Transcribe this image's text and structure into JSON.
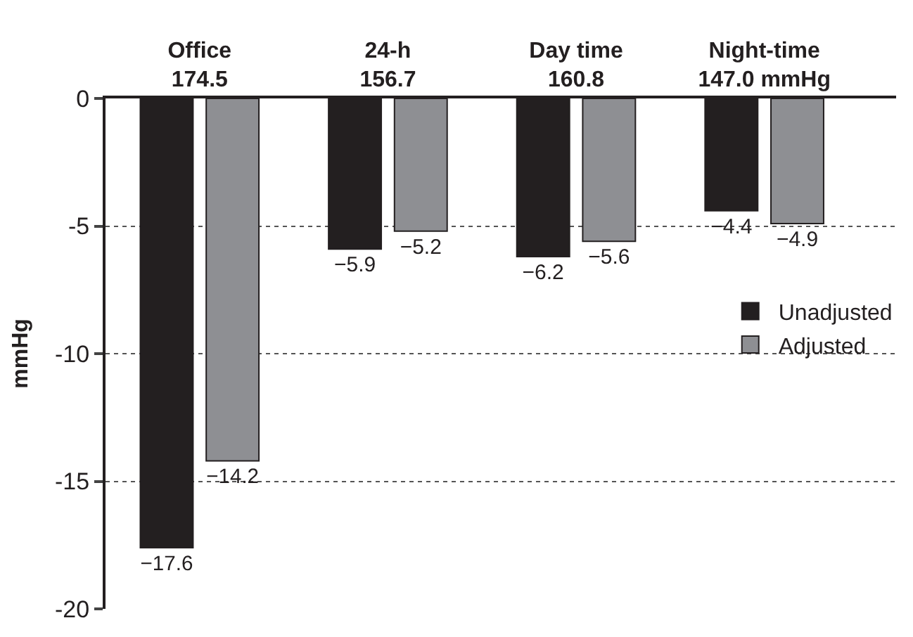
{
  "chart_data": {
    "type": "bar",
    "categories": [
      "Office\n174.5",
      "24-h\n156.7",
      "Day time\n160.8",
      "Night-time\n147.0 mmHg"
    ],
    "ylabel": "mmHg",
    "series": [
      {
        "name": "Unadjusted",
        "color": "#231f20",
        "values": [
          -17.6,
          -5.9,
          -6.2,
          -4.4
        ],
        "value_labels": [
          "−17.6",
          "−5.9",
          "−6.2",
          "−4.4"
        ]
      },
      {
        "name": "Adjusted",
        "color": "#8e8f93",
        "values": [
          -14.2,
          -5.2,
          -5.6,
          -4.9
        ],
        "value_labels": [
          "−14.2",
          "−5.2",
          "−5.6",
          "−4.9"
        ]
      }
    ],
    "ylim": [
      -20,
      0
    ],
    "yticks": [
      {
        "value": 0,
        "label": "0"
      },
      {
        "value": -5,
        "label": "-5"
      },
      {
        "value": -10,
        "label": "-10"
      },
      {
        "value": -15,
        "label": "-15"
      },
      {
        "value": -20,
        "label": "-20"
      }
    ],
    "grid": "y",
    "line_style": "dotted",
    "legend": "right"
  }
}
